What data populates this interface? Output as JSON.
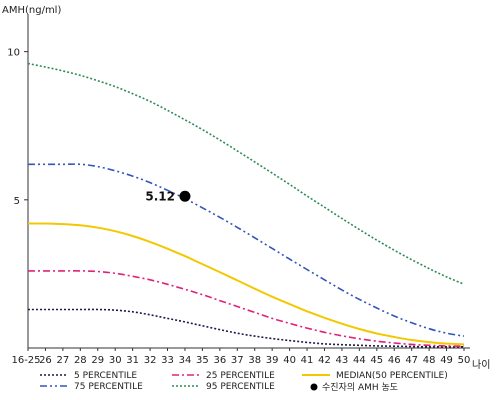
{
  "chart_data": {
    "type": "line",
    "ylabel": "AMH(ng/ml)",
    "xlabel": "나이",
    "ylim": [
      0,
      11
    ],
    "y_ticks": [
      10,
      5
    ],
    "x_tick_labels": [
      "16-25",
      "26",
      "27",
      "28",
      "29",
      "30",
      "31",
      "32",
      "33",
      "34",
      "35",
      "36",
      "37",
      "38",
      "39",
      "40",
      "41",
      "42",
      "43",
      "44",
      "45",
      "46",
      "47",
      "48",
      "49",
      "50"
    ],
    "x": [
      25,
      26,
      27,
      28,
      29,
      30,
      31,
      32,
      33,
      34,
      35,
      36,
      37,
      38,
      39,
      40,
      41,
      42,
      43,
      44,
      45,
      46,
      47,
      48,
      49,
      50
    ],
    "grid": false,
    "legend_position": "bottom",
    "series": [
      {
        "name": "5 PERCENTILE",
        "color": "#1a1a4e",
        "style": "dotted",
        "values": [
          1.3,
          1.3,
          1.3,
          1.3,
          1.3,
          1.28,
          1.22,
          1.12,
          1.0,
          0.88,
          0.75,
          0.62,
          0.5,
          0.4,
          0.32,
          0.25,
          0.19,
          0.14,
          0.11,
          0.09,
          0.07,
          0.06,
          0.05,
          0.04,
          0.04,
          0.04
        ]
      },
      {
        "name": "25 PERCENTILE",
        "color": "#e0207a",
        "style": "dashdot",
        "values": [
          2.6,
          2.6,
          2.6,
          2.6,
          2.58,
          2.52,
          2.42,
          2.3,
          2.15,
          1.98,
          1.8,
          1.6,
          1.4,
          1.2,
          1.0,
          0.83,
          0.67,
          0.53,
          0.41,
          0.31,
          0.23,
          0.17,
          0.12,
          0.09,
          0.07,
          0.06
        ]
      },
      {
        "name": "MEDIAN(50 PERCENTILE)",
        "color": "#f2c800",
        "style": "solid",
        "values": [
          4.2,
          4.2,
          4.18,
          4.14,
          4.06,
          3.94,
          3.78,
          3.58,
          3.35,
          3.1,
          2.83,
          2.56,
          2.28,
          2.0,
          1.73,
          1.48,
          1.24,
          1.02,
          0.82,
          0.64,
          0.49,
          0.37,
          0.27,
          0.2,
          0.15,
          0.12
        ]
      },
      {
        "name": "75 PERCENTILE",
        "color": "#3355bb",
        "style": "dashdotdot",
        "values": [
          6.2,
          6.2,
          6.2,
          6.2,
          6.12,
          5.98,
          5.8,
          5.58,
          5.32,
          5.04,
          4.73,
          4.41,
          4.07,
          3.72,
          3.36,
          3.0,
          2.65,
          2.3,
          1.96,
          1.64,
          1.35,
          1.08,
          0.85,
          0.65,
          0.5,
          0.4
        ]
      },
      {
        "name": "95 PERCENTILE",
        "color": "#2e8b57",
        "style": "dotted",
        "values": [
          9.6,
          9.48,
          9.35,
          9.2,
          9.02,
          8.82,
          8.58,
          8.32,
          8.02,
          7.7,
          7.37,
          7.02,
          6.65,
          6.28,
          5.9,
          5.52,
          5.13,
          4.75,
          4.37,
          4.0,
          3.64,
          3.3,
          2.98,
          2.68,
          2.4,
          2.15
        ]
      }
    ],
    "highlight_point": {
      "label": "수진자의 AMH 농도",
      "x": 34,
      "y": 5.12,
      "value_label": "5.12",
      "color": "#000000"
    }
  }
}
